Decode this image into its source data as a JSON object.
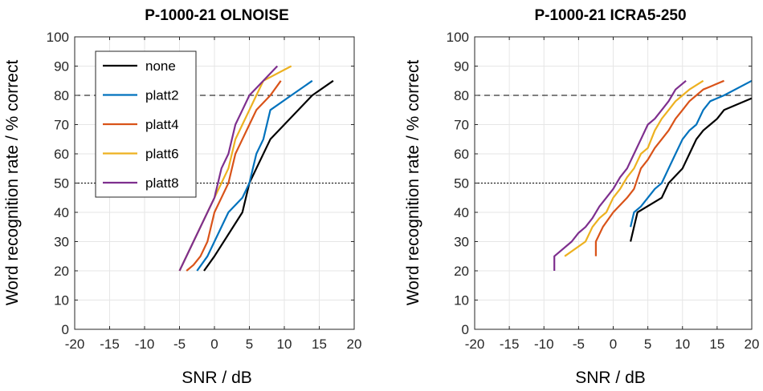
{
  "chart_data": [
    {
      "type": "line",
      "title": "P-1000-21 OLNOISE",
      "xlabel": "SNR / dB",
      "ylabel": "Word recognition rate / % correct",
      "xlim": [
        -20,
        20
      ],
      "ylim": [
        0,
        100
      ],
      "xticks": [
        "-20",
        "-15",
        "-10",
        "-5",
        "0",
        "5",
        "10",
        "15",
        "20"
      ],
      "yticks": [
        "0",
        "10",
        "20",
        "30",
        "40",
        "50",
        "60",
        "70",
        "80",
        "90",
        "100"
      ],
      "grid": true,
      "legend": "top-left",
      "reference_lines": [
        {
          "y": 80,
          "style": "dashed"
        },
        {
          "y": 50,
          "style": "dotted"
        }
      ],
      "series": [
        {
          "name": "none",
          "color": "#000000",
          "x": [
            -1.5,
            0,
            4,
            5,
            6,
            8,
            10,
            12,
            14,
            17
          ],
          "y": [
            20,
            25,
            40,
            50,
            55,
            65,
            70,
            75,
            80,
            85
          ]
        },
        {
          "name": "platt2",
          "color": "#0072BD",
          "x": [
            -2.5,
            -1,
            0,
            2,
            4,
            5,
            6,
            7,
            8,
            11,
            14
          ],
          "y": [
            20,
            25,
            30,
            40,
            45,
            50,
            60,
            65,
            75,
            80,
            85
          ]
        },
        {
          "name": "platt4",
          "color": "#D95319",
          "x": [
            -4,
            -3,
            -2,
            -1,
            0,
            1,
            2,
            3,
            4,
            5,
            6,
            8,
            9.5
          ],
          "y": [
            20,
            22,
            25,
            30,
            40,
            45,
            50,
            60,
            65,
            70,
            75,
            80,
            85
          ]
        },
        {
          "name": "platt6",
          "color": "#EDB120",
          "x": [
            -5,
            -3,
            -1,
            0,
            1,
            2,
            3,
            4,
            5,
            6,
            7,
            11
          ],
          "y": [
            20,
            30,
            40,
            45,
            50,
            55,
            65,
            70,
            75,
            80,
            85,
            90
          ]
        },
        {
          "name": "platt8",
          "color": "#7E2F8E",
          "x": [
            -5,
            -3,
            -1,
            0,
            1,
            2,
            3,
            4,
            5,
            7,
            9
          ],
          "y": [
            20,
            30,
            40,
            45,
            55,
            60,
            70,
            75,
            80,
            85,
            90
          ]
        }
      ]
    },
    {
      "type": "line",
      "title": "P-1000-21 ICRA5-250",
      "xlabel": "SNR / dB",
      "ylabel": "Word recognition rate / % correct",
      "xlim": [
        -20,
        20
      ],
      "ylim": [
        0,
        100
      ],
      "xticks": [
        "-20",
        "-15",
        "-10",
        "-5",
        "0",
        "5",
        "10",
        "15",
        "20"
      ],
      "yticks": [
        "0",
        "10",
        "20",
        "30",
        "40",
        "50",
        "60",
        "70",
        "80",
        "90",
        "100"
      ],
      "grid": true,
      "reference_lines": [
        {
          "y": 80,
          "style": "dashed"
        },
        {
          "y": 50,
          "style": "dotted"
        }
      ],
      "series": [
        {
          "name": "none",
          "color": "#000000",
          "x": [
            2.5,
            3.5,
            7,
            8,
            10,
            11,
            12,
            13,
            14,
            15,
            16,
            20
          ],
          "y": [
            30,
            40,
            45,
            50,
            55,
            60,
            65,
            68,
            70,
            72,
            75,
            79
          ]
        },
        {
          "name": "platt2",
          "color": "#0072BD",
          "x": [
            2.5,
            3,
            4,
            5,
            6,
            7,
            8,
            9,
            10,
            11,
            12,
            13,
            14,
            16,
            20
          ],
          "y": [
            35,
            40,
            42,
            45,
            48,
            50,
            55,
            60,
            65,
            68,
            70,
            75,
            78,
            80,
            85
          ]
        },
        {
          "name": "platt4",
          "color": "#D95319",
          "x": [
            -2.5,
            -2.5,
            -1.5,
            0,
            2,
            3,
            4,
            5,
            6,
            7,
            8,
            9,
            10,
            11,
            12,
            13,
            14,
            16
          ],
          "y": [
            25,
            30,
            35,
            40,
            45,
            48,
            55,
            58,
            62,
            65,
            68,
            72,
            75,
            78,
            80,
            82,
            83,
            85
          ]
        },
        {
          "name": "platt6",
          "color": "#EDB120",
          "x": [
            -7,
            -4,
            -3,
            -2,
            -1,
            0,
            1,
            2,
            3,
            4,
            5,
            6,
            7,
            8,
            9,
            10,
            11,
            13
          ],
          "y": [
            25,
            30,
            35,
            38,
            40,
            45,
            48,
            52,
            55,
            60,
            62,
            68,
            72,
            75,
            78,
            80,
            82,
            85
          ]
        },
        {
          "name": "platt8",
          "color": "#7E2F8E",
          "x": [
            -8.5,
            -8.5,
            -6,
            -5,
            -4,
            -3,
            -2,
            -1,
            0,
            1,
            2,
            3,
            4,
            5,
            6,
            7,
            8,
            9,
            10.5
          ],
          "y": [
            20,
            25,
            30,
            33,
            35,
            38,
            42,
            45,
            48,
            52,
            55,
            60,
            65,
            70,
            72,
            75,
            78,
            82,
            85
          ]
        }
      ]
    }
  ]
}
